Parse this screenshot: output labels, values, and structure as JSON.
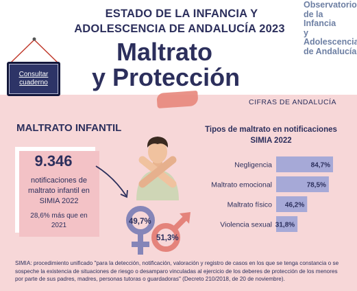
{
  "header": {
    "line1": "ESTADO DE LA INFANCIA Y",
    "line2": "ADOLESCENCIA DE ANDALUCÍA 2023",
    "title_line1": "Maltrato",
    "title_line2": "y Protección"
  },
  "observatorio": {
    "lines": [
      "Observatorio",
      "de la Infancia",
      "y Adolescencia",
      "de Andalucía"
    ]
  },
  "sign": {
    "label_line1": "Consultar",
    "label_line2": "cuaderno"
  },
  "section_label": "CIFRAS DE ANDALUCÍA",
  "left": {
    "title": "MALTRATO INFANTIL",
    "number": "9.346",
    "description": "notificaciones de maltrato infantil en SIMIA 2022",
    "comparison": "28,6% más que en 2021"
  },
  "gender": {
    "female_pct": "49,7%",
    "male_pct": "51,3%",
    "female_color": "#8585b8",
    "male_color": "#e4837b"
  },
  "chart_data": {
    "type": "bar",
    "title": "Tipos de maltrato en notificaciones SIMIA 2022",
    "categories": [
      "Negligencia",
      "Maltrato emocional",
      "Maltrato físico",
      "Violencia sexual"
    ],
    "values": [
      84.7,
      78.5,
      46.2,
      31.8
    ],
    "value_labels": [
      "84,7%",
      "78,5%",
      "46,2%",
      "31,8%"
    ],
    "orientation": "horizontal",
    "bar_color": "#a6a9d7",
    "xlim": [
      0,
      100
    ]
  },
  "footnote": "SIMIA: procedimiento unificado \"para la detección, notificación, valoración y registro de casos en los que se tenga constancia o se sospeche la existencia de situaciones de riesgo o desamparo vinculadas al ejercicio de los deberes de protección de los menores por parte de sus padres, madres, personas tutoras o guardadoras\" (Decreto 210/2018, de 20 de noviembre)."
}
